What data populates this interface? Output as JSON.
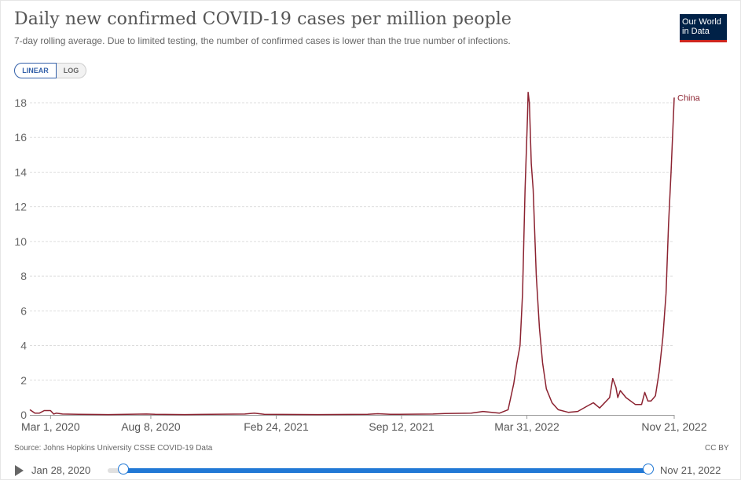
{
  "header": {
    "title": "Daily new confirmed COVID-19 cases per million people",
    "subtitle": "7-day rolling average. Due to limited testing, the number of confirmed cases is lower than the true number of infections."
  },
  "logo": {
    "line1": "Our World",
    "line2": "in Data"
  },
  "scale_toggle": {
    "linear_label": "LINEAR",
    "log_label": "LOG",
    "selected": "LINEAR"
  },
  "footer": {
    "source": "Source: Johns Hopkins University CSSE COVID-19 Data",
    "license": "CC BY"
  },
  "timeline": {
    "start_label": "Jan 28, 2020",
    "end_label": "Nov 21, 2022"
  },
  "colors": {
    "series": "#8b2230",
    "grid": "#dddddd",
    "accent": "#2178d5",
    "logo_bg": "#002147",
    "logo_bar": "#ce261e"
  },
  "chart_data": {
    "type": "line",
    "title": "Daily new confirmed COVID-19 cases per million people",
    "subtitle": "7-day rolling average. Due to limited testing, the number of confirmed cases is lower than the true number of infections.",
    "xlabel": "",
    "ylabel": "",
    "x_range": [
      "2020-01-28",
      "2022-11-21"
    ],
    "ylim": [
      0,
      18
    ],
    "y_ticks": [
      "0",
      "2",
      "4",
      "6",
      "8",
      "10",
      "12",
      "14",
      "16",
      "18"
    ],
    "x_ticks": [
      {
        "date": "2020-03-01",
        "label": "Mar 1, 2020"
      },
      {
        "date": "2020-08-08",
        "label": "Aug 8, 2020"
      },
      {
        "date": "2021-02-24",
        "label": "Feb 24, 2021"
      },
      {
        "date": "2021-09-12",
        "label": "Sep 12, 2021"
      },
      {
        "date": "2022-03-31",
        "label": "Mar 31, 2022"
      },
      {
        "date": "2022-11-21",
        "label": "Nov 21, 2022"
      }
    ],
    "grid": true,
    "series": [
      {
        "name": "China",
        "color": "#8b2230",
        "points": [
          [
            "2020-01-28",
            0.3
          ],
          [
            "2020-02-05",
            0.1
          ],
          [
            "2020-02-12",
            0.1
          ],
          [
            "2020-02-20",
            0.25
          ],
          [
            "2020-03-01",
            0.25
          ],
          [
            "2020-03-06",
            0.05
          ],
          [
            "2020-03-10",
            0.1
          ],
          [
            "2020-03-20",
            0.05
          ],
          [
            "2020-04-15",
            0.03
          ],
          [
            "2020-06-01",
            0.02
          ],
          [
            "2020-08-01",
            0.05
          ],
          [
            "2020-08-15",
            0.03
          ],
          [
            "2020-10-01",
            0.02
          ],
          [
            "2021-01-05",
            0.05
          ],
          [
            "2021-01-20",
            0.1
          ],
          [
            "2021-02-05",
            0.03
          ],
          [
            "2021-05-01",
            0.02
          ],
          [
            "2021-07-20",
            0.03
          ],
          [
            "2021-08-05",
            0.07
          ],
          [
            "2021-08-25",
            0.03
          ],
          [
            "2021-11-01",
            0.05
          ],
          [
            "2021-11-20",
            0.08
          ],
          [
            "2022-01-01",
            0.1
          ],
          [
            "2022-01-20",
            0.2
          ],
          [
            "2022-02-15",
            0.1
          ],
          [
            "2022-03-01",
            0.3
          ],
          [
            "2022-03-10",
            1.8
          ],
          [
            "2022-03-15",
            3.0
          ],
          [
            "2022-03-20",
            4.0
          ],
          [
            "2022-03-24",
            7.0
          ],
          [
            "2022-03-28",
            13.0
          ],
          [
            "2022-04-01",
            17.2
          ],
          [
            "2022-04-02",
            18.6
          ],
          [
            "2022-04-04",
            18.0
          ],
          [
            "2022-04-07",
            14.5
          ],
          [
            "2022-04-10",
            13.0
          ],
          [
            "2022-04-15",
            8.0
          ],
          [
            "2022-04-20",
            5.0
          ],
          [
            "2022-04-25",
            3.0
          ],
          [
            "2022-05-01",
            1.5
          ],
          [
            "2022-05-10",
            0.7
          ],
          [
            "2022-05-20",
            0.3
          ],
          [
            "2022-06-05",
            0.15
          ],
          [
            "2022-06-20",
            0.2
          ],
          [
            "2022-07-05",
            0.5
          ],
          [
            "2022-07-15",
            0.7
          ],
          [
            "2022-07-25",
            0.4
          ],
          [
            "2022-08-10",
            1.0
          ],
          [
            "2022-08-15",
            2.1
          ],
          [
            "2022-08-20",
            1.6
          ],
          [
            "2022-08-23",
            1.0
          ],
          [
            "2022-08-27",
            1.4
          ],
          [
            "2022-09-05",
            1.0
          ],
          [
            "2022-09-20",
            0.6
          ],
          [
            "2022-09-30",
            0.6
          ],
          [
            "2022-10-05",
            1.3
          ],
          [
            "2022-10-10",
            0.8
          ],
          [
            "2022-10-15",
            0.8
          ],
          [
            "2022-10-22",
            1.1
          ],
          [
            "2022-10-28",
            2.5
          ],
          [
            "2022-11-03",
            4.5
          ],
          [
            "2022-11-08",
            7.0
          ],
          [
            "2022-11-12",
            11.0
          ],
          [
            "2022-11-16",
            14.0
          ],
          [
            "2022-11-21",
            18.3
          ]
        ]
      }
    ]
  }
}
